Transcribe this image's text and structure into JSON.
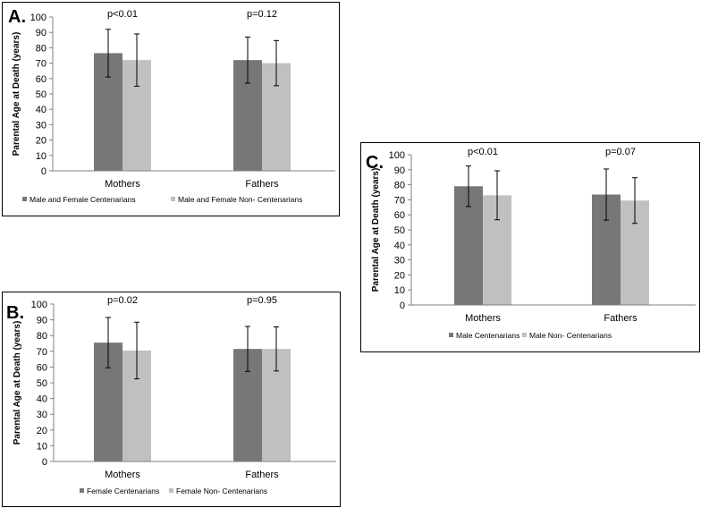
{
  "chart_data": [
    {
      "type": "bar",
      "panel_label": "A.",
      "title": "",
      "ylabel": "Parental Age at Death (years)",
      "xlabel": "",
      "ylim": [
        0,
        100
      ],
      "yticks": [
        "0",
        "10",
        "20",
        "30",
        "40",
        "50",
        "60",
        "70",
        "80",
        "90",
        "100"
      ],
      "categories": [
        "Mothers",
        "Fathers"
      ],
      "p_values": [
        "p<0.01",
        "p=0.12"
      ],
      "series": [
        {
          "name": "Male and Female Centenarians",
          "color": "#777777",
          "values": [
            76.5,
            72.0
          ],
          "errors": [
            15.5,
            15.0
          ]
        },
        {
          "name": "Male and Female Non- Centenarians",
          "color": "#c0c0c0",
          "values": [
            72.0,
            70.0
          ],
          "errors": [
            17.0,
            14.7
          ]
        }
      ],
      "legend_position": "bottom"
    },
    {
      "type": "bar",
      "panel_label": "B.",
      "title": "",
      "ylabel": "Parental Age at Death (years)",
      "xlabel": "",
      "ylim": [
        0,
        100
      ],
      "yticks": [
        "0",
        "10",
        "20",
        "30",
        "40",
        "50",
        "60",
        "70",
        "80",
        "90",
        "100"
      ],
      "categories": [
        "Mothers",
        "Fathers"
      ],
      "p_values": [
        "p=0.02",
        "p=0.95"
      ],
      "series": [
        {
          "name": "Female Centenarians",
          "color": "#777777",
          "values": [
            75.5,
            71.5
          ],
          "errors": [
            16.0,
            14.3
          ]
        },
        {
          "name": "Female Non- Centenarians",
          "color": "#c0c0c0",
          "values": [
            70.5,
            71.5
          ],
          "errors": [
            18.0,
            14.0
          ]
        }
      ],
      "legend_position": "bottom"
    },
    {
      "type": "bar",
      "panel_label": "C.",
      "title": "",
      "ylabel": "Parental Age at Death (years)",
      "xlabel": "",
      "ylim": [
        0,
        100
      ],
      "yticks": [
        "0",
        "10",
        "20",
        "30",
        "40",
        "50",
        "60",
        "70",
        "80",
        "90",
        "100"
      ],
      "categories": [
        "Mothers",
        "Fathers"
      ],
      "p_values": [
        "p<0.01",
        "p=0.07"
      ],
      "series": [
        {
          "name": "Male Centenarians",
          "color": "#777777",
          "values": [
            79.0,
            73.5
          ],
          "errors": [
            13.5,
            17.0
          ]
        },
        {
          "name": "Male Non- Centenarians",
          "color": "#c0c0c0",
          "values": [
            73.0,
            69.5
          ],
          "errors": [
            16.3,
            15.2
          ]
        }
      ],
      "legend_position": "bottom"
    }
  ]
}
